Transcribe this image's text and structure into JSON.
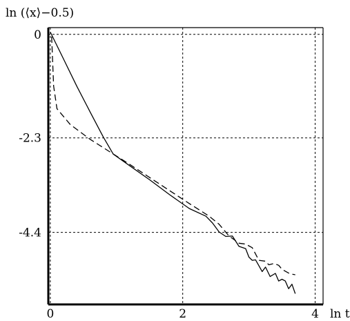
{
  "chart_data": {
    "type": "line",
    "ylabel": "ln (⟨x⟩−0.5)",
    "xlabel": "ln t",
    "xlim": [
      -0.03,
      4.12
    ],
    "ylim": [
      -6.0,
      0.15
    ],
    "x_ticks": [
      {
        "value": 0,
        "label": "0"
      },
      {
        "value": 2,
        "label": "2"
      },
      {
        "value": 4,
        "label": "4"
      }
    ],
    "y_ticks": [
      {
        "value": 0,
        "label": "0"
      },
      {
        "value": -2.3,
        "label": "-2.3"
      },
      {
        "value": -4.4,
        "label": "-4.4"
      }
    ],
    "grid": "dotted at tick positions",
    "series": [
      {
        "style": "solid",
        "points": [
          [
            0.0,
            0.05
          ],
          [
            0.2,
            -0.55
          ],
          [
            0.4,
            -1.15
          ],
          [
            0.6,
            -1.72
          ],
          [
            0.8,
            -2.28
          ],
          [
            0.95,
            -2.66
          ],
          [
            1.2,
            -2.92
          ],
          [
            1.5,
            -3.23
          ],
          [
            1.8,
            -3.56
          ],
          [
            2.1,
            -3.87
          ],
          [
            2.35,
            -4.04
          ],
          [
            2.45,
            -4.19
          ],
          [
            2.55,
            -4.39
          ],
          [
            2.65,
            -4.49
          ],
          [
            2.75,
            -4.48
          ],
          [
            2.85,
            -4.71
          ],
          [
            2.95,
            -4.76
          ],
          [
            3.0,
            -4.95
          ],
          [
            3.05,
            -5.02
          ],
          [
            3.1,
            -5.01
          ],
          [
            3.2,
            -5.27
          ],
          [
            3.25,
            -5.17
          ],
          [
            3.32,
            -5.38
          ],
          [
            3.4,
            -5.31
          ],
          [
            3.45,
            -5.48
          ],
          [
            3.5,
            -5.44
          ],
          [
            3.55,
            -5.48
          ],
          [
            3.6,
            -5.65
          ],
          [
            3.65,
            -5.55
          ],
          [
            3.7,
            -5.76
          ]
        ]
      },
      {
        "style": "dashed",
        "points": [
          [
            0.02,
            -0.05
          ],
          [
            0.05,
            -1.15
          ],
          [
            0.1,
            -1.65
          ],
          [
            0.3,
            -2.0
          ],
          [
            0.6,
            -2.33
          ],
          [
            0.9,
            -2.61
          ],
          [
            1.2,
            -2.89
          ],
          [
            1.5,
            -3.18
          ],
          [
            1.8,
            -3.47
          ],
          [
            2.1,
            -3.76
          ],
          [
            2.4,
            -4.04
          ],
          [
            2.55,
            -4.22
          ],
          [
            2.7,
            -4.48
          ],
          [
            2.85,
            -4.64
          ],
          [
            2.95,
            -4.66
          ],
          [
            3.05,
            -4.74
          ],
          [
            3.15,
            -5.02
          ],
          [
            3.25,
            -5.04
          ],
          [
            3.3,
            -5.12
          ],
          [
            3.38,
            -5.09
          ],
          [
            3.45,
            -5.13
          ],
          [
            3.5,
            -5.22
          ],
          [
            3.56,
            -5.27
          ],
          [
            3.62,
            -5.32
          ],
          [
            3.7,
            -5.34
          ]
        ]
      }
    ]
  }
}
